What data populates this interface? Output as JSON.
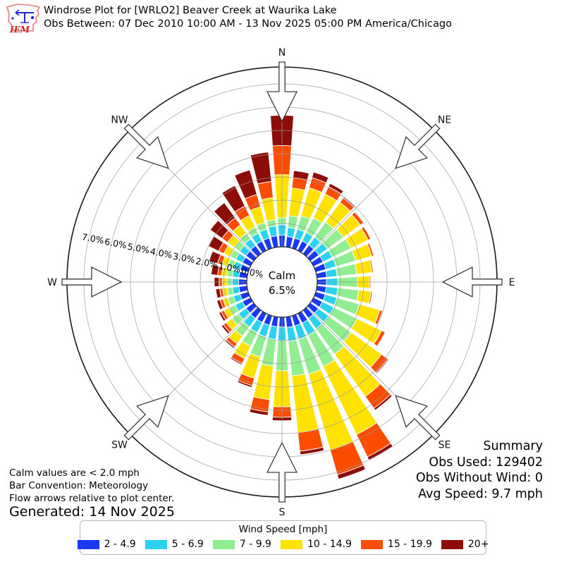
{
  "header": {
    "title": "Windrose Plot for [WRLO2] Beaver Creek at Waurika Lake",
    "subtitle": "Obs Between: 07 Dec 2010 10:00 AM - 13 Nov 2025 05:00 PM America/Chicago"
  },
  "logo": {
    "text": "IEM"
  },
  "chart": {
    "compass_labels": [
      "N",
      "NE",
      "E",
      "SE",
      "S",
      "SW",
      "W",
      "NW"
    ],
    "radial_ticks": [
      "0.0%",
      "1.0%",
      "2.0%",
      "3.0%",
      "4.0%",
      "5.0%",
      "6.0%",
      "7.0%"
    ],
    "calm_line1": "Calm",
    "calm_line2": "6.5%",
    "grid_color": "#9a9a9a",
    "outer_circle_color": "#1a1a1a"
  },
  "chart_data": {
    "type": "windrose (stacked polar bar)",
    "units": "percent frequency of wind direction, 10-degree bins",
    "radial_axis": {
      "min": 0,
      "max": 7.7,
      "ticks": [
        0,
        1,
        2,
        3,
        4,
        5,
        6,
        7
      ],
      "tick_unit": "%"
    },
    "calm_percent": 6.5,
    "directions_deg": [
      0,
      10,
      20,
      30,
      40,
      50,
      60,
      70,
      80,
      90,
      100,
      110,
      120,
      130,
      140,
      150,
      160,
      170,
      180,
      190,
      200,
      210,
      220,
      230,
      240,
      250,
      260,
      270,
      280,
      290,
      300,
      310,
      320,
      330,
      340,
      350
    ],
    "series": [
      {
        "name": "2 - 4.9",
        "color": "#1a38f2",
        "values": [
          0.5,
          0.45,
          0.45,
          0.45,
          0.45,
          0.45,
          0.45,
          0.45,
          0.42,
          0.4,
          0.4,
          0.42,
          0.42,
          0.42,
          0.42,
          0.45,
          0.45,
          0.45,
          0.42,
          0.42,
          0.42,
          0.42,
          0.42,
          0.4,
          0.38,
          0.36,
          0.35,
          0.35,
          0.35,
          0.36,
          0.38,
          0.4,
          0.42,
          0.44,
          0.45,
          0.48
        ]
      },
      {
        "name": "5 - 6.9",
        "color": "#2bd2ef",
        "values": [
          0.45,
          0.4,
          0.4,
          0.4,
          0.42,
          0.45,
          0.45,
          0.45,
          0.45,
          0.48,
          0.5,
          0.52,
          0.55,
          0.55,
          0.55,
          0.58,
          0.6,
          0.6,
          0.58,
          0.55,
          0.52,
          0.48,
          0.45,
          0.4,
          0.35,
          0.3,
          0.28,
          0.28,
          0.28,
          0.3,
          0.32,
          0.34,
          0.36,
          0.38,
          0.4,
          0.42
        ]
      },
      {
        "name": "7 - 9.9",
        "color": "#90ee90",
        "values": [
          0.3,
          0.5,
          0.6,
          0.7,
          0.8,
          0.85,
          0.88,
          0.88,
          0.85,
          0.85,
          0.9,
          1.0,
          1.1,
          1.2,
          1.35,
          1.5,
          1.55,
          1.5,
          1.3,
          1.15,
          0.9,
          0.65,
          0.5,
          0.35,
          0.28,
          0.25,
          0.22,
          0.22,
          0.24,
          0.25,
          0.27,
          0.28,
          0.3,
          0.3,
          0.3,
          0.28
        ]
      },
      {
        "name": "10 - 14.9",
        "color": "#ffe200",
        "values": [
          1.85,
          1.2,
          1.25,
          1.15,
          1.05,
          0.9,
          0.82,
          0.72,
          0.65,
          0.52,
          0.53,
          0.92,
          1.18,
          1.6,
          2.25,
          3.25,
          3.4,
          2.45,
          1.55,
          1.45,
          0.95,
          0.6,
          0.4,
          0.3,
          0.25,
          0.22,
          0.2,
          0.2,
          0.23,
          0.26,
          0.3,
          0.36,
          0.44,
          0.55,
          0.7,
          0.95
        ]
      },
      {
        "name": "15 - 19.9",
        "color": "#fb4d02",
        "values": [
          1.25,
          0.45,
          0.45,
          0.35,
          0.23,
          0.17,
          0.13,
          0.09,
          0.06,
          0.05,
          0.06,
          0.12,
          0.17,
          0.33,
          0.63,
          1.07,
          1.1,
          0.8,
          0.45,
          0.53,
          0.33,
          0.24,
          0.17,
          0.15,
          0.14,
          0.13,
          0.13,
          0.14,
          0.17,
          0.2,
          0.25,
          0.3,
          0.38,
          0.45,
          0.55,
          0.7
        ]
      },
      {
        "name": "20+",
        "color": "#8c0d07",
        "values": [
          1.3,
          0.3,
          0.25,
          0.15,
          0.05,
          0.03,
          0.02,
          0.01,
          0.01,
          0.0,
          0.01,
          0.02,
          0.03,
          0.05,
          0.1,
          0.15,
          0.2,
          0.15,
          0.15,
          0.15,
          0.08,
          0.06,
          0.06,
          0.1,
          0.1,
          0.14,
          0.17,
          0.21,
          0.28,
          0.38,
          0.48,
          0.62,
          0.8,
          0.98,
          1.1,
          1.27
        ]
      }
    ]
  },
  "summary": {
    "title": "Summary",
    "obs_used": "Obs Used: 129402",
    "obs_without_wind": "Obs Without Wind: 0",
    "avg_speed": "Avg Speed: 9.7 mph"
  },
  "annotations": {
    "line1": "Calm values are < 2.0 mph",
    "line2": "Bar Convention: Meteorology",
    "line3": "Flow arrows relative to plot center.",
    "generated": "Generated: 14 Nov 2025"
  },
  "legend": {
    "title": "Wind Speed [mph]",
    "bins": [
      {
        "label": "2 - 4.9",
        "color": "#1a38f2"
      },
      {
        "label": "5 - 6.9",
        "color": "#2bd2ef"
      },
      {
        "label": "7 - 9.9",
        "color": "#90ee90"
      },
      {
        "label": "10 - 14.9",
        "color": "#ffe200"
      },
      {
        "label": "15 - 19.9",
        "color": "#fb4d02"
      },
      {
        "label": "20+",
        "color": "#8c0d07"
      }
    ]
  }
}
